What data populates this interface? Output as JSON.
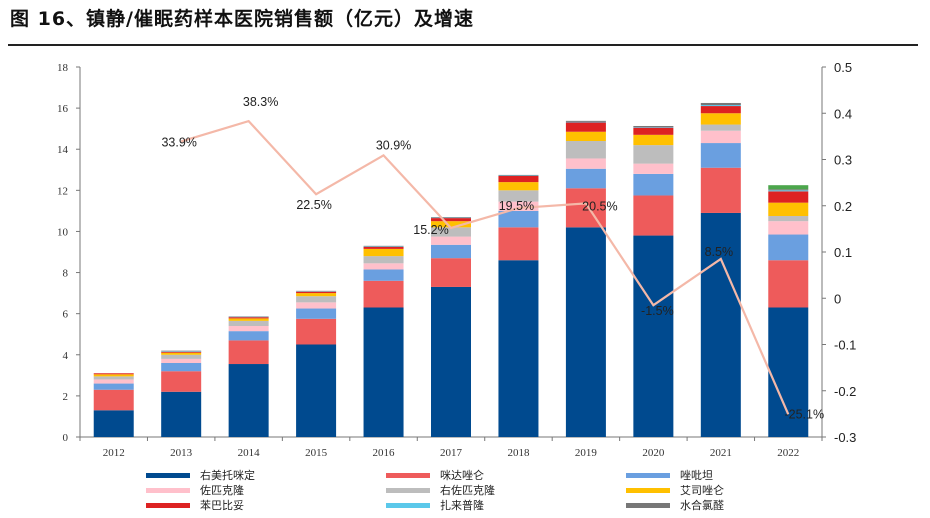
{
  "figure": {
    "title": "图 16、镇静/催眠药样本医院销售额（亿元）及增速"
  },
  "chart_data": {
    "type": "bar",
    "stacked": true,
    "categories": [
      "2012",
      "2013",
      "2014",
      "2015",
      "2016",
      "2017",
      "2018",
      "2019",
      "2020",
      "2021",
      "2022"
    ],
    "y_left": {
      "range": [
        0,
        18
      ],
      "ticks": [
        "0",
        "2",
        "4",
        "6",
        "8",
        "10",
        "12",
        "14",
        "16",
        "18"
      ]
    },
    "y_right": {
      "range": [
        -0.3,
        0.5
      ],
      "ticks": [
        "-0.3",
        "-0.2",
        "-0.1",
        "0",
        "0.1",
        "0.2",
        "0.3",
        "0.4",
        "0.5"
      ]
    },
    "series": [
      {
        "name": "右美托咪定",
        "color": "#004A8F",
        "values": [
          1.3,
          2.2,
          3.55,
          4.5,
          6.3,
          7.3,
          8.6,
          10.2,
          9.8,
          10.9,
          6.3
        ]
      },
      {
        "name": "咪达唑仑",
        "color": "#EE5B5B",
        "values": [
          1.0,
          1.0,
          1.15,
          1.25,
          1.3,
          1.4,
          1.6,
          1.9,
          1.95,
          2.2,
          2.3
        ]
      },
      {
        "name": "唑吡坦",
        "color": "#6A9FE0",
        "values": [
          0.3,
          0.4,
          0.45,
          0.5,
          0.55,
          0.65,
          0.8,
          0.95,
          1.05,
          1.2,
          1.25
        ]
      },
      {
        "name": "佐匹克隆",
        "color": "#FFC0CB",
        "values": [
          0.2,
          0.2,
          0.25,
          0.3,
          0.3,
          0.4,
          0.45,
          0.5,
          0.5,
          0.6,
          0.65
        ]
      },
      {
        "name": "右佐匹克隆",
        "color": "#BDBDBD",
        "values": [
          0.15,
          0.2,
          0.25,
          0.3,
          0.35,
          0.45,
          0.55,
          0.85,
          0.9,
          0.3,
          0.25
        ]
      },
      {
        "name": "艾司唑仑",
        "color": "#FFC000",
        "values": [
          0.1,
          0.1,
          0.12,
          0.15,
          0.35,
          0.3,
          0.4,
          0.45,
          0.5,
          0.55,
          0.65
        ]
      },
      {
        "name": "苯巴比妥",
        "color": "#DD2222",
        "values": [
          0.05,
          0.05,
          0.06,
          0.07,
          0.1,
          0.15,
          0.3,
          0.45,
          0.35,
          0.35,
          0.55
        ]
      },
      {
        "name": "扎来普隆",
        "color": "#5BC8EA",
        "values": [
          0.0,
          0.03,
          0.02,
          0.02,
          0.02,
          0.02,
          0.02,
          0.03,
          0.03,
          0.05,
          0.05
        ]
      },
      {
        "name": "水合氯醛",
        "color": "#777777",
        "values": [
          0.0,
          0.02,
          0.02,
          0.02,
          0.03,
          0.03,
          0.03,
          0.05,
          0.05,
          0.1,
          0.05
        ]
      },
      {
        "name": "",
        "color": "#4CA64C",
        "values": [
          0,
          0,
          0,
          0,
          0,
          0,
          0,
          0,
          0,
          0,
          0.2
        ]
      }
    ],
    "growth": {
      "color": "#F4B8A8",
      "values": [
        null,
        0.339,
        0.383,
        0.225,
        0.309,
        0.152,
        0.195,
        0.205,
        -0.015,
        0.085,
        -0.251
      ],
      "labels": [
        "",
        "33.9%",
        "38.3%",
        "22.5%",
        "30.9%",
        "15.2%",
        "19.5%",
        "20.5%",
        "-1.5%",
        "8.5%",
        "-25.1%"
      ]
    }
  }
}
